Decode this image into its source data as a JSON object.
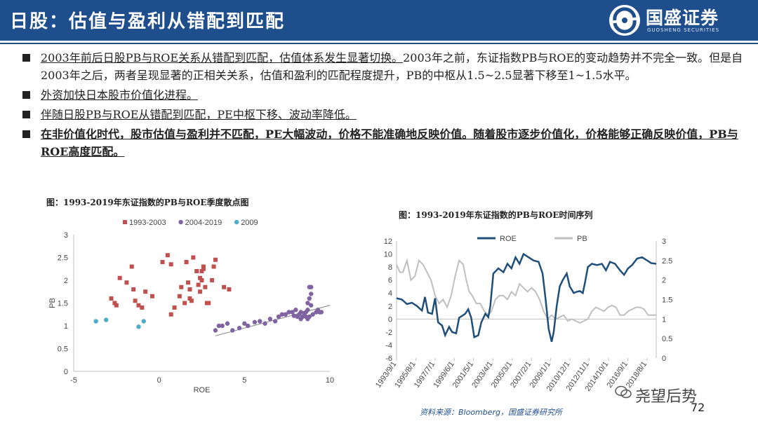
{
  "header": {
    "title": "日股：估值与盈利从错配到匹配",
    "logo_name": "国盛证券",
    "logo_sub": "GUOSHENG SECURITIES",
    "color": "#1f4e8c"
  },
  "bullets": [
    {
      "lead": "2003年前后日股PB与ROE关系从错配到匹配，估值体系发生显著切换。",
      "rest": "2003年之前，东证指数PB与ROE的变动趋势并不完全一致。但是自2003年之后，两者呈现显著的正相关关系，估值和盈利的匹配程度提升，PB的中枢从1.5~2.5显著下移至1~1.5水平。"
    },
    {
      "lead": "外资加快日本股市价值化进程。",
      "rest": ""
    },
    {
      "lead": "伴随日股PB与ROE从错配到匹配，PE中枢下移、波动率降低。",
      "rest": ""
    },
    {
      "lead": "在非价值化时代，股市估值与盈利并不匹配，PE大幅波动，价格不能准确地反映价值。随着股市逐步价值化，价格能够正确反映价值，PB与ROE高度匹配。",
      "rest": ""
    }
  ],
  "scatter_caption": "图：1993-2019年东证指数的PB与ROE季度散点图",
  "line_caption": "图：1993-2019年东证指数的PB与ROE时间序列",
  "source": "资料来源：Bloomberg，国盛证券研究所",
  "watermark": "尧望后势",
  "page_number": "72",
  "chart_data": [
    {
      "type": "scatter",
      "xlabel": "ROE",
      "ylabel": "PB",
      "xlim": [
        -5,
        10
      ],
      "ylim": [
        0,
        3
      ],
      "xticks": [
        -5,
        0,
        5,
        10
      ],
      "yticks": [
        0,
        0.5,
        1,
        1.5,
        2,
        2.5,
        3
      ],
      "legend_position": "top",
      "grid": false,
      "trendline": {
        "from": [
          3.3,
          0.78
        ],
        "to": [
          10,
          1.45
        ],
        "color": "#7f7f7f"
      },
      "series": [
        {
          "name": "1993-2003",
          "color": "#c0504d",
          "marker": "square",
          "points": [
            [
              -2.8,
              1.6
            ],
            [
              -2.6,
              1.5
            ],
            [
              -2.5,
              1.45
            ],
            [
              -2.3,
              2.05
            ],
            [
              -1.9,
              1.95
            ],
            [
              -1.6,
              2.3
            ],
            [
              -1.5,
              1.8
            ],
            [
              -1.4,
              1.55
            ],
            [
              -1.2,
              1.45
            ],
            [
              -1.0,
              1.4
            ],
            [
              -0.8,
              1.75
            ],
            [
              -0.4,
              1.65
            ],
            [
              0.2,
              2.4
            ],
            [
              0.5,
              2.55
            ],
            [
              0.7,
              2.35
            ],
            [
              0.7,
              1.25
            ],
            [
              0.9,
              1.4
            ],
            [
              1.2,
              1.65
            ],
            [
              1.3,
              1.85
            ],
            [
              1.5,
              1.5
            ],
            [
              1.6,
              2.4
            ],
            [
              1.7,
              1.95
            ],
            [
              1.8,
              1.8
            ],
            [
              1.8,
              1.6
            ],
            [
              1.9,
              1.55
            ],
            [
              2.0,
              2.5
            ],
            [
              2.2,
              2.2
            ],
            [
              2.3,
              1.9
            ],
            [
              2.4,
              1.75
            ],
            [
              2.4,
              2.05
            ],
            [
              2.5,
              2.2
            ],
            [
              2.5,
              2.0
            ],
            [
              2.6,
              2.3
            ],
            [
              2.6,
              2.25
            ],
            [
              2.7,
              1.85
            ],
            [
              2.8,
              1.5
            ],
            [
              2.9,
              1.5
            ],
            [
              3.1,
              2.0
            ],
            [
              3.2,
              2.3
            ],
            [
              3.3,
              2.45
            ],
            [
              3.8,
              1.85
            ],
            [
              4.1,
              1.8
            ]
          ]
        },
        {
          "name": "2004-2019",
          "color": "#8064a2",
          "marker": "circle",
          "points": [
            [
              3.3,
              0.9
            ],
            [
              3.5,
              1.0
            ],
            [
              3.7,
              1.0
            ],
            [
              4.0,
              1.05
            ],
            [
              4.3,
              0.9
            ],
            [
              4.7,
              0.95
            ],
            [
              5.0,
              1.05
            ],
            [
              5.2,
              1.0
            ],
            [
              5.6,
              1.08
            ],
            [
              5.9,
              1.1
            ],
            [
              6.2,
              1.05
            ],
            [
              6.5,
              1.15
            ],
            [
              6.8,
              1.1
            ],
            [
              7.0,
              1.2
            ],
            [
              7.2,
              1.25
            ],
            [
              7.4,
              1.25
            ],
            [
              7.6,
              1.3
            ],
            [
              7.8,
              1.3
            ],
            [
              7.9,
              1.22
            ],
            [
              8.0,
              1.35
            ],
            [
              8.1,
              1.2
            ],
            [
              8.2,
              1.25
            ],
            [
              8.3,
              1.3
            ],
            [
              8.3,
              1.15
            ],
            [
              8.4,
              1.2
            ],
            [
              8.5,
              1.28
            ],
            [
              8.6,
              1.3
            ],
            [
              8.7,
              1.35
            ],
            [
              8.8,
              1.85
            ],
            [
              8.9,
              1.85
            ],
            [
              8.9,
              1.7
            ],
            [
              8.8,
              1.6
            ],
            [
              8.7,
              1.5
            ],
            [
              8.9,
              1.45
            ],
            [
              9.0,
              1.25
            ],
            [
              9.2,
              1.3
            ],
            [
              9.3,
              1.35
            ],
            [
              9.4,
              1.3
            ],
            [
              9.5,
              1.3
            ],
            [
              8.6,
              1.2
            ],
            [
              8.7,
              1.15
            ],
            [
              8.8,
              1.2
            ]
          ]
        },
        {
          "name": "2009",
          "color": "#4bacc6",
          "marker": "circle",
          "points": [
            [
              -3.7,
              1.1
            ],
            [
              -3.1,
              1.13
            ],
            [
              -1.2,
              0.98
            ],
            [
              -0.9,
              1.1
            ]
          ]
        }
      ]
    },
    {
      "type": "line",
      "x_tick_labels": [
        "1993/9/1",
        "1995/8/1",
        "1997/7/1",
        "1999/6/1",
        "2001/5/1",
        "2003/4/1",
        "2005/3/1",
        "2007/2/1",
        "2009/1/1",
        "2010/12/1",
        "2012/11/1",
        "2014/10/1",
        "2016/9/1",
        "2018/8/1"
      ],
      "x_tick_years": [
        1993.67,
        1995.58,
        1997.5,
        1999.42,
        2001.33,
        2003.25,
        2005.17,
        2007.08,
        2009.0,
        2010.92,
        2012.83,
        2014.75,
        2016.67,
        2018.58
      ],
      "xlim": [
        1993.67,
        2019.5
      ],
      "y_left": {
        "lim": [
          -6,
          12
        ],
        "ticks": [
          -6,
          -4,
          -2,
          0,
          2,
          4,
          6,
          8,
          10,
          12
        ]
      },
      "y_right": {
        "lim": [
          0,
          3
        ],
        "ticks": [
          0,
          0.5,
          1,
          1.5,
          2,
          2.5,
          3
        ]
      },
      "legend_position": "top",
      "grid": false,
      "series": [
        {
          "name": "ROE",
          "axis": "left",
          "color": "#1f4e79",
          "points": [
            [
              1993.67,
              3.2
            ],
            [
              1994.2,
              3.0
            ],
            [
              1994.7,
              2.3
            ],
            [
              1995.2,
              2.5
            ],
            [
              1995.7,
              2.0
            ],
            [
              1996.2,
              1.3
            ],
            [
              1996.5,
              3.4
            ],
            [
              1996.8,
              1.0
            ],
            [
              1997.2,
              0.8
            ],
            [
              1997.5,
              3.2
            ],
            [
              1997.8,
              -0.5
            ],
            [
              1998.2,
              -1.0
            ],
            [
              1998.5,
              -2.5
            ],
            [
              1998.9,
              -1.2
            ],
            [
              1999.2,
              -2.0
            ],
            [
              1999.6,
              -2.2
            ],
            [
              1999.9,
              0.2
            ],
            [
              2000.2,
              0.5
            ],
            [
              2000.5,
              0.8
            ],
            [
              2000.8,
              1.5
            ],
            [
              2001.1,
              0.2
            ],
            [
              2001.4,
              -2.8
            ],
            [
              2001.8,
              -2.5
            ],
            [
              2002.1,
              -0.5
            ],
            [
              2002.5,
              0.8
            ],
            [
              2002.8,
              0.3
            ],
            [
              2003.0,
              2.0
            ],
            [
              2003.3,
              7.0
            ],
            [
              2003.8,
              7.8
            ],
            [
              2004.3,
              7.2
            ],
            [
              2004.7,
              8.5
            ],
            [
              2005.1,
              7.8
            ],
            [
              2005.5,
              9.5
            ],
            [
              2005.9,
              8.5
            ],
            [
              2006.3,
              10.0
            ],
            [
              2006.8,
              9.5
            ],
            [
              2007.3,
              9.0
            ],
            [
              2007.8,
              8.8
            ],
            [
              2008.2,
              7.0
            ],
            [
              2008.5,
              3.0
            ],
            [
              2008.8,
              -1.5
            ],
            [
              2009.1,
              -3.5
            ],
            [
              2009.3,
              -2.0
            ],
            [
              2009.6,
              2.0
            ],
            [
              2009.9,
              5.0
            ],
            [
              2010.2,
              6.0
            ],
            [
              2010.6,
              7.0
            ],
            [
              2010.9,
              5.0
            ],
            [
              2011.3,
              4.0
            ],
            [
              2011.6,
              4.2
            ],
            [
              2011.9,
              4.3
            ],
            [
              2012.2,
              4.0
            ],
            [
              2012.4,
              5.5
            ],
            [
              2012.7,
              8.0
            ],
            [
              2013.1,
              8.5
            ],
            [
              2013.6,
              8.3
            ],
            [
              2014.1,
              8.5
            ],
            [
              2014.5,
              7.5
            ],
            [
              2014.9,
              8.8
            ],
            [
              2015.4,
              8.5
            ],
            [
              2015.9,
              7.5
            ],
            [
              2016.3,
              6.8
            ],
            [
              2016.7,
              7.8
            ],
            [
              2017.1,
              8.3
            ],
            [
              2017.6,
              9.3
            ],
            [
              2018.1,
              9.5
            ],
            [
              2018.6,
              9.0
            ],
            [
              2019.0,
              8.6
            ],
            [
              2019.5,
              8.5
            ]
          ]
        },
        {
          "name": "PB",
          "axis": "right",
          "color": "#bfbfbf",
          "points": [
            [
              1993.67,
              2.4
            ],
            [
              1994.0,
              2.2
            ],
            [
              1994.3,
              2.2
            ],
            [
              1994.7,
              2.5
            ],
            [
              1995.1,
              2.0
            ],
            [
              1995.5,
              2.1
            ],
            [
              1995.9,
              2.5
            ],
            [
              1996.3,
              2.4
            ],
            [
              1996.7,
              2.2
            ],
            [
              1997.1,
              2.0
            ],
            [
              1997.5,
              1.6
            ],
            [
              1997.9,
              1.4
            ],
            [
              1998.3,
              1.5
            ],
            [
              1998.7,
              1.3
            ],
            [
              1999.1,
              1.6
            ],
            [
              1999.5,
              2.1
            ],
            [
              1999.9,
              2.5
            ],
            [
              2000.3,
              2.4
            ],
            [
              2000.6,
              2.0
            ],
            [
              2000.9,
              1.7
            ],
            [
              2001.2,
              1.6
            ],
            [
              2001.6,
              1.4
            ],
            [
              2002.0,
              1.4
            ],
            [
              2002.4,
              1.2
            ],
            [
              2002.8,
              1.1
            ],
            [
              2003.1,
              1.2
            ],
            [
              2003.5,
              1.5
            ],
            [
              2003.9,
              1.6
            ],
            [
              2004.3,
              1.6
            ],
            [
              2004.7,
              1.5
            ],
            [
              2005.1,
              1.7
            ],
            [
              2005.5,
              1.6
            ],
            [
              2005.9,
              1.9
            ],
            [
              2006.3,
              1.8
            ],
            [
              2006.7,
              1.7
            ],
            [
              2007.1,
              1.8
            ],
            [
              2007.5,
              1.7
            ],
            [
              2007.9,
              1.5
            ],
            [
              2008.3,
              1.2
            ],
            [
              2008.7,
              1.0
            ],
            [
              2009.1,
              1.1
            ],
            [
              2009.5,
              1.0
            ],
            [
              2009.9,
              1.05
            ],
            [
              2010.3,
              1.1
            ],
            [
              2010.7,
              0.95
            ],
            [
              2011.1,
              1.0
            ],
            [
              2011.5,
              0.95
            ],
            [
              2011.9,
              0.9
            ],
            [
              2012.3,
              0.95
            ],
            [
              2012.7,
              1.0
            ],
            [
              2013.1,
              1.2
            ],
            [
              2013.5,
              1.3
            ],
            [
              2013.9,
              1.25
            ],
            [
              2014.3,
              1.2
            ],
            [
              2014.7,
              1.3
            ],
            [
              2015.1,
              1.35
            ],
            [
              2015.5,
              1.3
            ],
            [
              2015.9,
              1.1
            ],
            [
              2016.3,
              1.1
            ],
            [
              2016.7,
              1.2
            ],
            [
              2017.1,
              1.25
            ],
            [
              2017.5,
              1.3
            ],
            [
              2017.9,
              1.3
            ],
            [
              2018.3,
              1.25
            ],
            [
              2018.7,
              1.1
            ],
            [
              2019.1,
              1.1
            ],
            [
              2019.5,
              1.1
            ]
          ]
        }
      ]
    }
  ]
}
